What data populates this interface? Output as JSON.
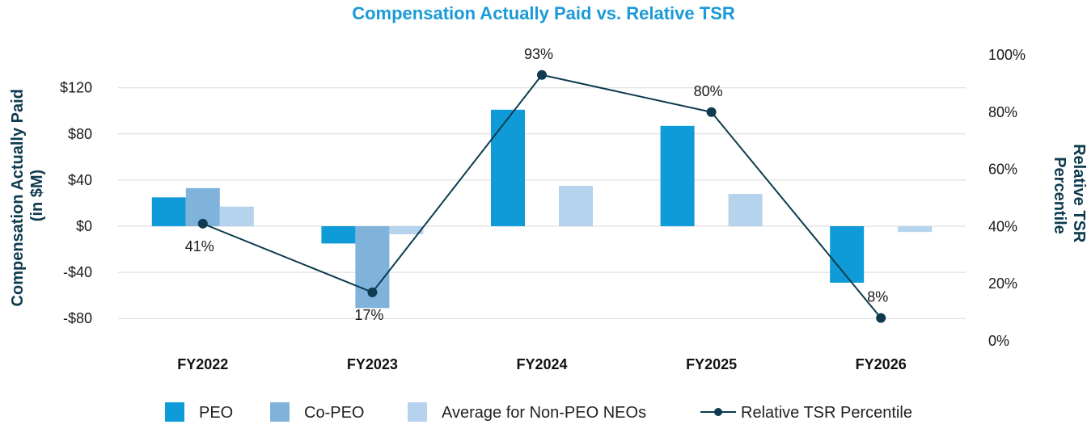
{
  "chart_data": {
    "type": "bar",
    "title": "Compensation Actually Paid vs. Relative TSR",
    "ylabel": [
      "Compensation Actually Paid",
      "(in $M)"
    ],
    "y2label": [
      "Relative TSR",
      "Percentile"
    ],
    "categories": [
      "FY2022",
      "FY2023",
      "FY2024",
      "FY2025",
      "FY2026"
    ],
    "ylim": [
      -100,
      150
    ],
    "yticks": [
      -80,
      -40,
      0,
      40,
      80,
      120
    ],
    "yticklabels": [
      "-$80",
      "-$40",
      "$0",
      "$40",
      "$80",
      "$120"
    ],
    "y2lim": [
      0,
      100
    ],
    "y2ticks": [
      0,
      20,
      40,
      60,
      80,
      100
    ],
    "y2ticklabels": [
      "0%",
      "20%",
      "40%",
      "60%",
      "80%",
      "100%"
    ],
    "grid": true,
    "legend_position": "bottom",
    "series": [
      {
        "name": "PEO",
        "type": "bar",
        "color": "#0f9bd8",
        "values": [
          25,
          -15,
          101,
          87,
          -49
        ]
      },
      {
        "name": "Co-PEO",
        "type": "bar",
        "color": "#7fb3dc",
        "values": [
          33,
          -71,
          null,
          null,
          null
        ]
      },
      {
        "name": "Average for Non-PEO NEOs",
        "type": "bar",
        "color": "#b5d3ec",
        "values": [
          17,
          -7,
          35,
          28,
          -5
        ]
      },
      {
        "name": "Relative TSR Percentile",
        "type": "line",
        "axis": "right",
        "color": "#0e3b4f",
        "values": [
          41,
          17,
          93,
          80,
          8
        ],
        "labels": [
          "41%",
          "17%",
          "93%",
          "80%",
          "8%"
        ],
        "label_positions": [
          "below",
          "below",
          "above",
          "above",
          "above"
        ]
      }
    ]
  }
}
